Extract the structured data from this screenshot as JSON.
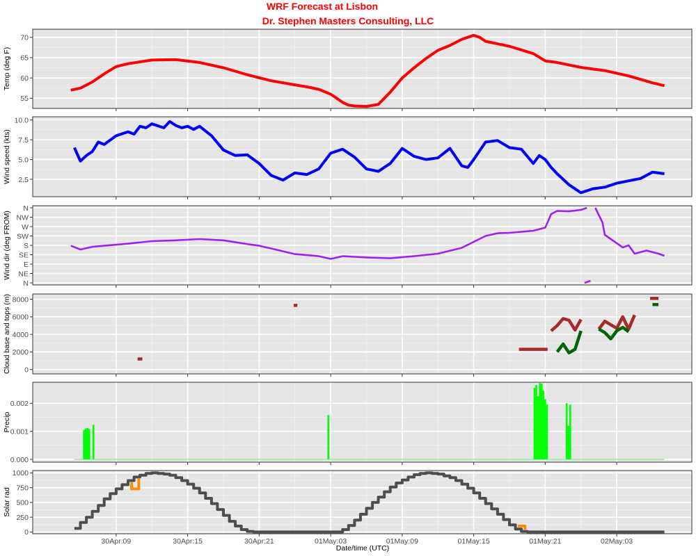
{
  "title": "WRF Forecast at Lisbon",
  "subtitle": "Dr. Stephen Masters Consulting, LLC",
  "xlabel": "Date/time (UTC)",
  "x_ticks": [
    "30Apr:09",
    "30Apr:15",
    "30Apr:21",
    "01May:03",
    "01May:09",
    "01May:15",
    "01May:21",
    "02May:03"
  ],
  "x_hours": [
    9,
    15,
    21,
    27,
    33,
    39,
    45,
    51
  ],
  "chart_data": [
    {
      "type": "line",
      "ylabel": "Temp (deg F)",
      "ylim": [
        52.5,
        72
      ],
      "yticks": [
        {
          "v": 55,
          "l": "55"
        },
        {
          "v": 60,
          "l": "60"
        },
        {
          "v": 65,
          "l": "65"
        },
        {
          "v": 70,
          "l": "70"
        }
      ],
      "grid": true,
      "series": [
        {
          "color": "#ff0000",
          "x": [
            5.2,
            6,
            7,
            8,
            9,
            10,
            12,
            14,
            16,
            18,
            20,
            22,
            24,
            25,
            26,
            27,
            28,
            28.5,
            29,
            30,
            31,
            32,
            33,
            34,
            35,
            36,
            37,
            38,
            39,
            39.5,
            40,
            42,
            44,
            45,
            46,
            48,
            50,
            52,
            54,
            55
          ],
          "y": [
            57.0,
            57.5,
            59.0,
            61.0,
            62.8,
            63.5,
            64.4,
            64.5,
            63.8,
            62.5,
            60.8,
            59.3,
            58.3,
            57.8,
            57.2,
            56.0,
            54.0,
            53.3,
            53.1,
            53.0,
            53.5,
            56.5,
            60.0,
            62.5,
            64.8,
            66.8,
            68.0,
            69.5,
            70.5,
            70.0,
            69.0,
            67.8,
            66.0,
            64.2,
            63.8,
            62.6,
            61.8,
            60.5,
            58.8,
            58.1
          ]
        }
      ]
    },
    {
      "type": "line",
      "ylabel": "Wind speed (kts)",
      "ylim": [
        0.3,
        10.4
      ],
      "yticks": [
        {
          "v": 2.5,
          "l": "2.5"
        },
        {
          "v": 5.0,
          "l": "5.0"
        },
        {
          "v": 7.5,
          "l": "7.5"
        },
        {
          "v": 10.0,
          "l": "10.0"
        }
      ],
      "grid": true,
      "series": [
        {
          "color": "#0000ff",
          "x": [
            5.5,
            6,
            6.5,
            7,
            7.5,
            8,
            9,
            10,
            10.5,
            11,
            11.5,
            12,
            13,
            13.5,
            14,
            14.5,
            15,
            15.5,
            16,
            17,
            18,
            19,
            20,
            21,
            22,
            23,
            24,
            25,
            26,
            27,
            28,
            29,
            30,
            31,
            32,
            33,
            34,
            35,
            36,
            37,
            38,
            38.5,
            39,
            40,
            41,
            42,
            43,
            44,
            44.5,
            45,
            45.5,
            46,
            47,
            48,
            49,
            50,
            51,
            52,
            53,
            54,
            55
          ],
          "y": [
            6.5,
            4.8,
            5.5,
            6.0,
            7.2,
            6.9,
            8.0,
            8.5,
            8.2,
            9.2,
            9.0,
            9.5,
            9.0,
            9.8,
            9.3,
            9.0,
            9.2,
            8.8,
            9.2,
            8.0,
            6.2,
            5.5,
            5.6,
            4.5,
            3.0,
            2.4,
            3.3,
            3.1,
            3.8,
            5.8,
            6.3,
            5.3,
            3.8,
            3.5,
            4.5,
            6.4,
            5.4,
            5.0,
            5.2,
            6.4,
            4.2,
            4.0,
            5.0,
            7.2,
            7.4,
            6.5,
            6.3,
            4.5,
            5.5,
            5.0,
            4.0,
            3.2,
            1.8,
            0.8,
            1.3,
            1.5,
            2.0,
            2.3,
            2.6,
            3.4,
            3.2
          ]
        }
      ]
    },
    {
      "type": "line",
      "ylabel": "Wind dir (deg FROM)",
      "ylim": [
        -10,
        370
      ],
      "yticks": [
        {
          "v": 0,
          "l": "N"
        },
        {
          "v": 45,
          "l": "NE"
        },
        {
          "v": 90,
          "l": "E"
        },
        {
          "v": 135,
          "l": "SE"
        },
        {
          "v": 180,
          "l": "S"
        },
        {
          "v": 225,
          "l": "SW"
        },
        {
          "v": 270,
          "l": "W"
        },
        {
          "v": 315,
          "l": "NW"
        },
        {
          "v": 360,
          "l": "N"
        }
      ],
      "grid": true,
      "series": [
        {
          "color": "#a020f0",
          "x": [
            5.2,
            6,
            7,
            8,
            10,
            12,
            14,
            16,
            18,
            20,
            21,
            22,
            24,
            26,
            27,
            28,
            29,
            30,
            32,
            34,
            36,
            38,
            40,
            41,
            42,
            44,
            45,
            45.5,
            46,
            47,
            48,
            48.5
          ],
          "y": [
            178,
            160,
            173,
            178,
            188,
            200,
            204,
            210,
            204,
            186,
            178,
            165,
            138,
            128,
            115,
            128,
            125,
            122,
            118,
            128,
            140,
            168,
            225,
            238,
            240,
            250,
            265,
            330,
            345,
            343,
            350,
            360
          ]
        },
        {
          "color": "#a020f0",
          "x": [
            48.3,
            48.8
          ],
          "y": [
            0,
            10
          ]
        },
        {
          "color": "#a020f0",
          "x": [
            49.2,
            49.8,
            50,
            50.5,
            51.5,
            52,
            52.5,
            53.5,
            54.5,
            55
          ],
          "y": [
            360,
            290,
            230,
            210,
            170,
            180,
            140,
            155,
            140,
            130
          ]
        }
      ]
    },
    {
      "type": "line",
      "ylabel": "Cloud base and tops (m)",
      "ylim": [
        -500,
        8600
      ],
      "yticks": [
        {
          "v": 0,
          "l": "0"
        },
        {
          "v": 2000,
          "l": "2000"
        },
        {
          "v": 4000,
          "l": "4000"
        },
        {
          "v": 6000,
          "l": "6000"
        },
        {
          "v": 8000,
          "l": "8000"
        }
      ],
      "grid": true,
      "series": [
        {
          "color": "#a52a2a",
          "x": [
            10.8,
            11.2
          ],
          "y": [
            1200,
            1200
          ]
        },
        {
          "color": "#a52a2a",
          "x": [
            23.9,
            24.2
          ],
          "y": [
            7300,
            7300
          ]
        },
        {
          "color": "#a52a2a",
          "x": [
            42.8,
            45.2
          ],
          "y": [
            2300,
            2300
          ]
        },
        {
          "color": "#a52a2a",
          "x": [
            45.5,
            46,
            46.5,
            47,
            47.5,
            48
          ],
          "y": [
            4400,
            5000,
            5800,
            5600,
            4500,
            5700
          ]
        },
        {
          "color": "#006400",
          "x": [
            46,
            46.5,
            47,
            47.5,
            48
          ],
          "y": [
            2000,
            2900,
            1900,
            2300,
            4400
          ]
        },
        {
          "color": "#a52a2a",
          "x": [
            49.5,
            50,
            51,
            51.5,
            52,
            52.5
          ],
          "y": [
            4600,
            5500,
            4700,
            6000,
            4600,
            6200
          ]
        },
        {
          "color": "#006400",
          "x": [
            49.5,
            50,
            50.5,
            51,
            51.5,
            52
          ],
          "y": [
            4600,
            4200,
            3500,
            4400,
            4800,
            4300
          ]
        },
        {
          "color": "#a52a2a",
          "x": [
            53.8,
            54.5
          ],
          "y": [
            8100,
            8100
          ]
        },
        {
          "color": "#006400",
          "x": [
            54,
            54.5
          ],
          "y": [
            7400,
            7400
          ]
        }
      ]
    },
    {
      "type": "bar",
      "ylabel": "Precip",
      "ylim": [
        -0.0001,
        0.00275
      ],
      "yticks": [
        {
          "v": 0.0,
          "l": "0.000"
        },
        {
          "v": 0.001,
          "l": "0.001"
        },
        {
          "v": 0.002,
          "l": "0.002"
        }
      ],
      "grid": true,
      "baseline": {
        "color": "#90ee90",
        "x": [
          5.5,
          55
        ],
        "y": [
          0,
          0
        ]
      },
      "bars": {
        "color": "#00ff00",
        "x": [
          6.3,
          6.45,
          6.6,
          6.75,
          7.1,
          26.8,
          44.1,
          44.25,
          44.4,
          44.55,
          44.7,
          44.85,
          45.0,
          45.15,
          46.8,
          46.95,
          47.1
        ],
        "y": [
          0.00105,
          0.0011,
          0.00112,
          0.00108,
          0.00123,
          0.00158,
          0.00255,
          0.00265,
          0.00225,
          0.00272,
          0.0027,
          0.00245,
          0.00215,
          0.00195,
          0.002,
          0.0012,
          0.00195
        ]
      }
    },
    {
      "type": "line",
      "ylabel": "Solar rad",
      "ylim": [
        -30,
        1040
      ],
      "yticks": [
        {
          "v": 0,
          "l": "0"
        },
        {
          "v": 250,
          "l": "250"
        },
        {
          "v": 500,
          "l": "500"
        },
        {
          "v": 750,
          "l": "750"
        },
        {
          "v": 1000,
          "l": "1000"
        }
      ],
      "grid": true,
      "step": true,
      "series": [
        {
          "color": "#ff8c00",
          "x": [
            10.2,
            10.3,
            10.9
          ],
          "y": [
            820,
            730,
            900
          ]
        },
        {
          "color": "#ff8c00",
          "x": [
            42.7,
            43.3
          ],
          "y": [
            100,
            40
          ]
        },
        {
          "color": "#4d4d4d",
          "x": [
            5.5,
            6,
            6.5,
            7,
            7.5,
            8,
            8.5,
            9,
            9.5,
            10,
            10.5,
            11,
            11.5,
            12,
            12.5,
            13,
            13.5,
            14,
            14.5,
            15,
            15.5,
            16,
            16.5,
            17,
            17.5,
            18,
            18.5,
            19,
            19.5,
            20,
            20.5,
            21,
            27,
            28,
            28.5,
            29,
            29.5,
            30,
            30.5,
            31,
            31.5,
            32,
            32.5,
            33,
            33.5,
            34,
            34.5,
            35,
            35.5,
            36,
            36.5,
            37,
            37.5,
            38,
            38.5,
            39,
            39.5,
            40,
            40.5,
            41,
            41.5,
            42,
            42.5,
            43,
            43.5,
            44,
            55
          ],
          "y": [
            60,
            160,
            250,
            350,
            450,
            560,
            650,
            730,
            800,
            870,
            930,
            960,
            990,
            1000,
            990,
            980,
            960,
            920,
            870,
            810,
            740,
            660,
            570,
            480,
            380,
            280,
            180,
            100,
            40,
            10,
            0,
            0,
            0,
            40,
            110,
            200,
            300,
            400,
            500,
            590,
            680,
            760,
            830,
            880,
            930,
            970,
            990,
            1000,
            990,
            980,
            950,
            920,
            870,
            810,
            740,
            660,
            570,
            480,
            390,
            300,
            210,
            120,
            50,
            10,
            0,
            0,
            0
          ]
        }
      ]
    }
  ]
}
